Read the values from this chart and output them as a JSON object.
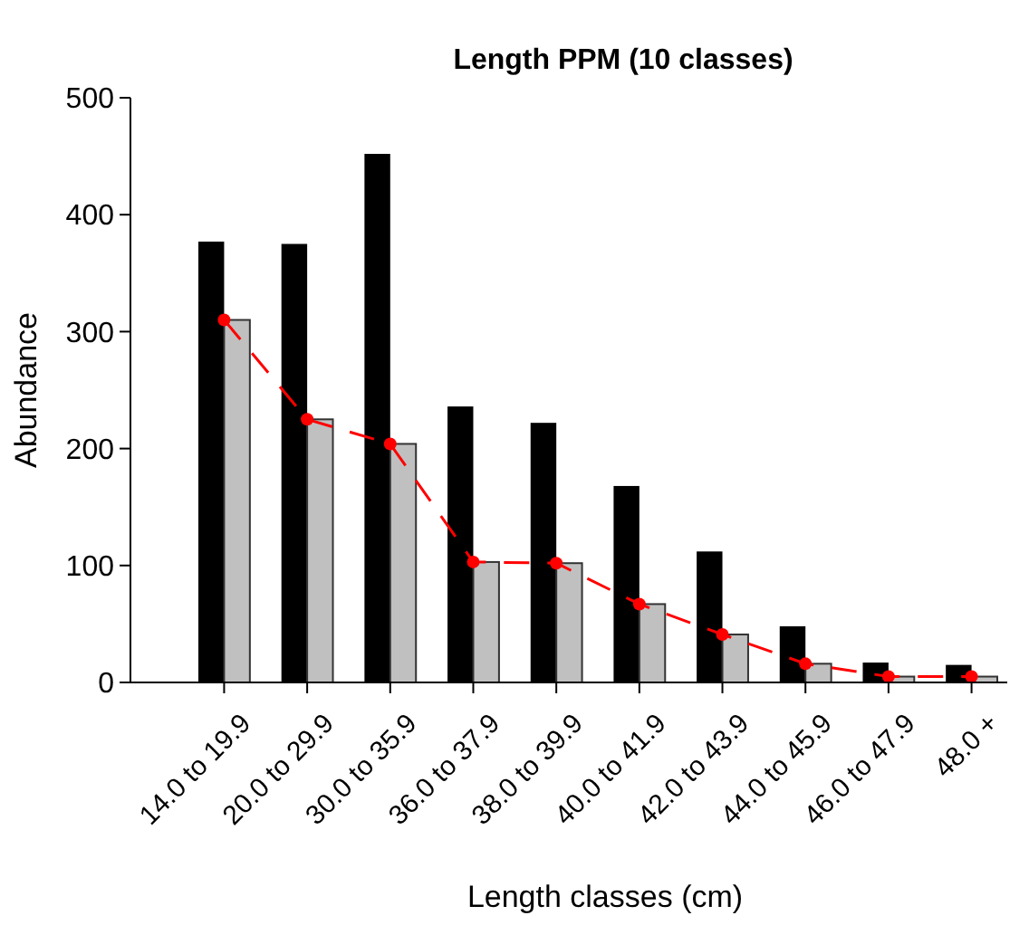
{
  "chart_data": {
    "type": "bar",
    "title": "Length PPM (10 classes)",
    "xlabel": "Length classes (cm)",
    "ylabel": "Abundance",
    "categories": [
      "14.0 to 19.9",
      "20.0 to 29.9",
      "30.0 to 35.9",
      "36.0 to 37.9",
      "38.0 to 39.9",
      "40.0 to 41.9",
      "42.0 to 43.9",
      "44.0 to 45.9",
      "46.0 to 47.9",
      "48.0 +"
    ],
    "series": [
      {
        "color": "#000000",
        "values": [
          377,
          375,
          452,
          236,
          222,
          168,
          112,
          48,
          17,
          15
        ]
      },
      {
        "color": "#c0c0c0",
        "values": [
          310,
          225,
          204,
          103,
          102,
          67,
          41,
          16,
          5,
          5
        ]
      },
      {
        "type": "line",
        "color": "#ff0000",
        "marker": "circle",
        "line_style": "dashed",
        "values": [
          310,
          225,
          204,
          103,
          102,
          67,
          41,
          16,
          5,
          5
        ]
      }
    ],
    "ylim": [
      0,
      500
    ],
    "yticks": [
      0,
      100,
      200,
      300,
      400,
      500
    ],
    "grid": false
  }
}
